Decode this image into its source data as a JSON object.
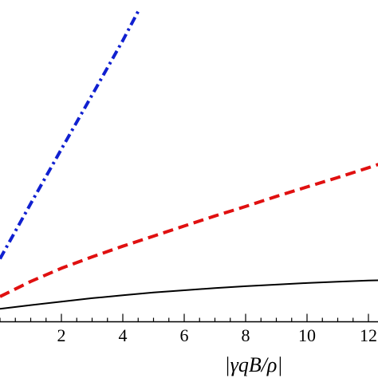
{
  "chart_data": {
    "type": "line",
    "xlabel": "|γqB/ρ|",
    "ylabel": "",
    "title": "",
    "xlim": [
      0,
      12.4
    ],
    "ylim": [
      0,
      1
    ],
    "x_ticks": [
      2,
      4,
      6,
      8,
      10,
      12
    ],
    "x_tick_labels": [
      "2",
      "4",
      "6",
      "8",
      "10",
      "12"
    ],
    "x_minor_step": 0.5,
    "grid": false,
    "series": [
      {
        "style": "solid",
        "color": "#000000",
        "x": [
          0,
          1,
          2,
          3,
          4,
          5,
          6,
          7,
          8,
          9,
          10,
          11,
          12,
          12.4
        ],
        "y": [
          0.041,
          0.053,
          0.064,
          0.075,
          0.084,
          0.093,
          0.1,
          0.107,
          0.113,
          0.118,
          0.123,
          0.127,
          0.131,
          0.132
        ]
      },
      {
        "style": "dashed",
        "color": "#e01010",
        "x": [
          0,
          1,
          2,
          3,
          4,
          5,
          6,
          7,
          8,
          9,
          10,
          11,
          12,
          12.4
        ],
        "y": [
          0.08,
          0.128,
          0.17,
          0.206,
          0.24,
          0.272,
          0.304,
          0.336,
          0.366,
          0.398,
          0.428,
          0.458,
          0.489,
          0.502
        ]
      },
      {
        "style": "dashdot",
        "color": "#1020d0",
        "x": [
          0,
          1,
          2,
          3,
          4,
          4.55
        ],
        "y": [
          0.2,
          0.375,
          0.548,
          0.72,
          0.893,
          0.995
        ]
      }
    ]
  }
}
